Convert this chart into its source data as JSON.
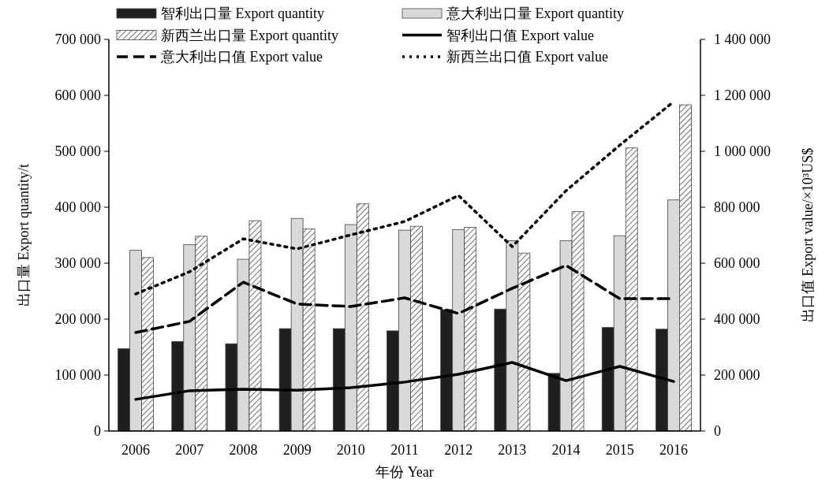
{
  "chart_data": {
    "type": "bar",
    "categories": [
      "2006",
      "2007",
      "2008",
      "2009",
      "2010",
      "2011",
      "2012",
      "2013",
      "2014",
      "2015",
      "2016"
    ],
    "xlabel": "年份 Year",
    "ylabel": "出口量 Export quantity/t",
    "y2label": "出口值 Export value/×10³US$",
    "series": [
      {
        "name": "智利出口量 Export quantity",
        "color": "#1f1f1f",
        "values": [
          147000,
          160000,
          156000,
          183000,
          183000,
          179000,
          217000,
          218000,
          103000,
          185000,
          182000
        ]
      },
      {
        "name": "意大利出口量 Export quantity",
        "color": "#d9d9d9",
        "values": [
          323000,
          333000,
          307000,
          380000,
          369000,
          359000,
          360000,
          340000,
          340000,
          349000,
          413000
        ]
      },
      {
        "name": "新西兰出口量 Export quantity",
        "color": "#444444",
        "values": [
          310000,
          348000,
          376000,
          361000,
          406000,
          366000,
          364000,
          318000,
          392000,
          506000,
          583000
        ]
      },
      {
        "name": "智利出口值 Export value",
        "type": "line",
        "axis": "y2",
        "line_style": "solid",
        "color": "#000000",
        "values": [
          113000,
          144000,
          149000,
          146000,
          155000,
          175000,
          203000,
          245000,
          180000,
          231000,
          177000
        ]
      },
      {
        "name": "意大利出口值 Export value",
        "type": "line",
        "axis": "y2",
        "line_style": "dashed",
        "color": "#000000",
        "values": [
          352000,
          392000,
          532000,
          454000,
          445000,
          476000,
          420000,
          510000,
          592000,
          473000,
          473000
        ]
      },
      {
        "name": "新西兰出口值 Export value",
        "type": "line",
        "axis": "y2",
        "line_style": "dotted",
        "color": "#000000",
        "values": [
          490000,
          569000,
          687000,
          651000,
          701000,
          749000,
          842000,
          659000,
          859000,
          1022000,
          1177000
        ]
      }
    ],
    "ylim": [
      0,
      700000
    ],
    "yticks": [
      {
        "value": 0,
        "label": "0"
      },
      {
        "value": 100000,
        "label": "100 000"
      },
      {
        "value": 200000,
        "label": "200 000"
      },
      {
        "value": 300000,
        "label": "300 000"
      },
      {
        "value": 400000,
        "label": "400 000"
      },
      {
        "value": 500000,
        "label": "500 000"
      },
      {
        "value": 600000,
        "label": "600 000"
      },
      {
        "value": 700000,
        "label": "700 000"
      }
    ],
    "y2lim": [
      0,
      1400000
    ],
    "y2ticks": [
      {
        "value": 0,
        "label": "0"
      },
      {
        "value": 200000,
        "label": "200 000"
      },
      {
        "value": 400000,
        "label": "400 000"
      },
      {
        "value": 600000,
        "label": "600 000"
      },
      {
        "value": 800000,
        "label": "800 000"
      },
      {
        "value": 1000000,
        "label": "1 000 000"
      },
      {
        "value": 1200000,
        "label": "1 200 000"
      },
      {
        "value": 1400000,
        "label": "1 400 000"
      }
    ],
    "legend": "top",
    "grid": false
  }
}
